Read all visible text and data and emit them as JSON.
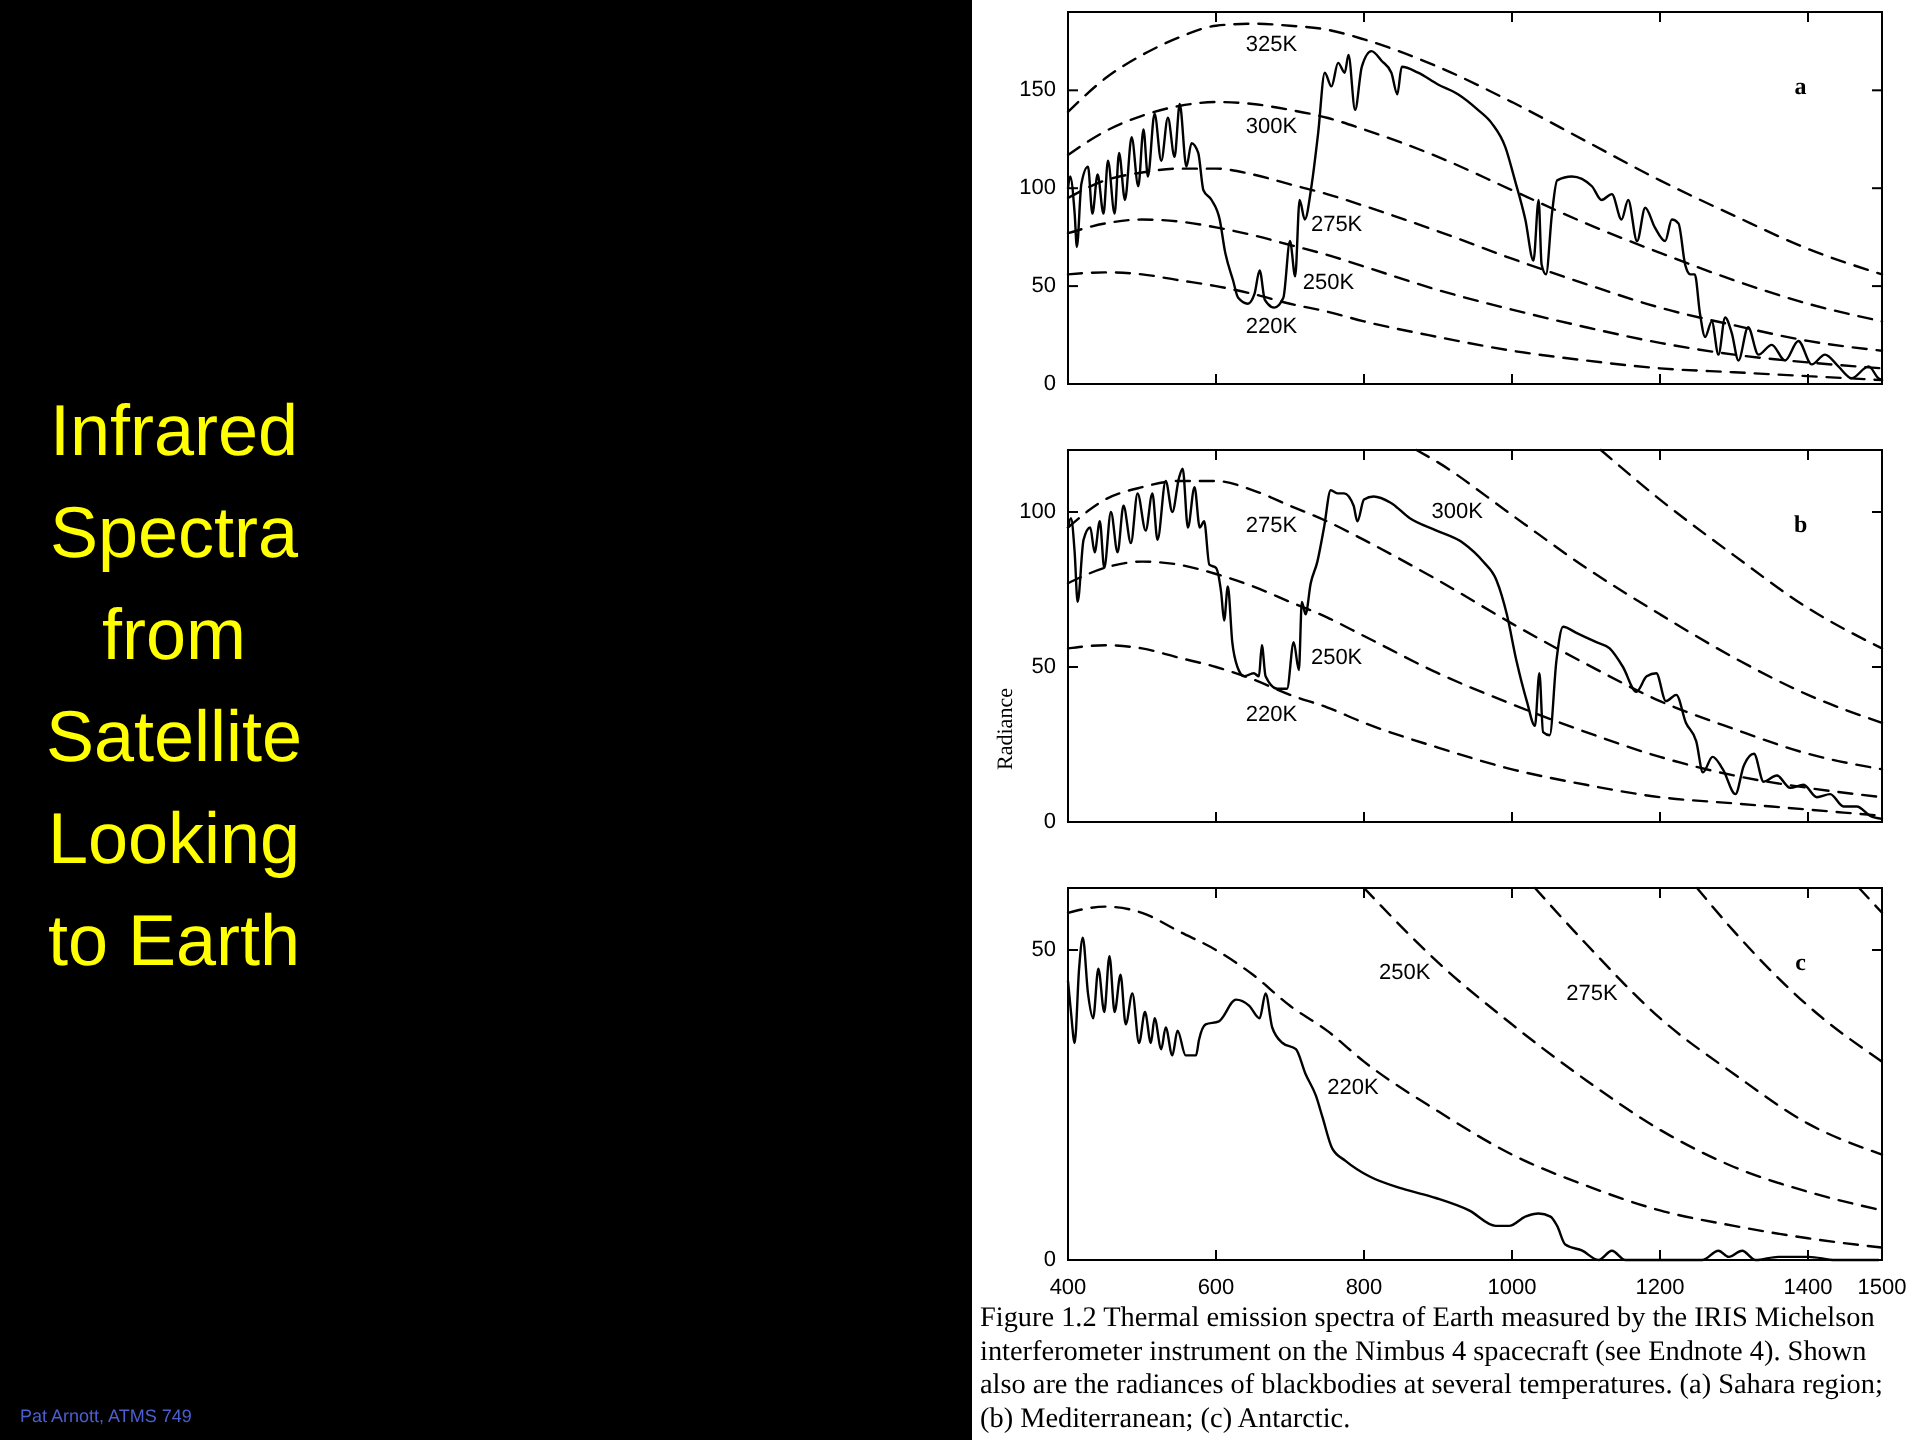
{
  "chart_data": [
    {
      "type": "other",
      "title": "Infrared Spectra from Satellite Looking to Earth",
      "annotations": [
        "Pat Arnott, ATMS 749"
      ]
    },
    {
      "type": "line",
      "title": "a",
      "xlim": [
        400,
        1500
      ],
      "xticks": [
        400,
        600,
        800,
        1000,
        1200,
        1400,
        1500
      ],
      "ylim": [
        0,
        190
      ],
      "yticks": [
        0,
        50,
        100,
        150
      ],
      "tick_labels": "y",
      "x": [
        400,
        450,
        500,
        550,
        600,
        650,
        700,
        750,
        800,
        900,
        1000,
        1100,
        1200,
        1300,
        1400,
        1500
      ],
      "series": [
        {
          "color": "#000000",
          "line_style": "solid",
          "x": [
            400,
            403,
            409,
            412,
            418,
            427,
            433,
            440,
            448,
            454,
            463,
            469,
            477,
            486,
            495,
            502,
            508,
            517,
            526,
            535,
            544,
            551,
            560,
            567,
            576,
            583,
            594,
            605,
            612,
            623,
            630,
            643,
            652,
            659,
            666,
            679,
            691,
            700,
            707,
            713,
            720,
            729,
            738,
            747,
            756,
            765,
            774,
            779,
            788,
            797,
            810,
            824,
            837,
            845,
            851,
            873,
            900,
            927,
            954,
            973,
            991,
            1004,
            1018,
            1029,
            1036,
            1040,
            1046,
            1054,
            1061,
            1081,
            1108,
            1121,
            1135,
            1148,
            1157,
            1169,
            1180,
            1193,
            1207,
            1216,
            1225,
            1234,
            1241,
            1247,
            1254,
            1261,
            1270,
            1279,
            1288,
            1297,
            1306,
            1319,
            1333,
            1351,
            1369,
            1387,
            1405,
            1423,
            1441,
            1459,
            1482,
            1495,
            1500
          ],
          "values": [
            100,
            106,
            87,
            70,
            102,
            111,
            87,
            107,
            87,
            114,
            87,
            118,
            94,
            126,
            101,
            130,
            106,
            138,
            114,
            136,
            116,
            143,
            111,
            123,
            118,
            99,
            94,
            84,
            68,
            53,
            44,
            41,
            46,
            58,
            43,
            39,
            44,
            73,
            55,
            94,
            84,
            101,
            128,
            159,
            152,
            164,
            159,
            168,
            140,
            162,
            170,
            165,
            159,
            148,
            162,
            159,
            153,
            148,
            140,
            133,
            121,
            104,
            84,
            63,
            94,
            61,
            56,
            87,
            104,
            106,
            101,
            94,
            97,
            84,
            94,
            73,
            90,
            80,
            73,
            84,
            82,
            61,
            56,
            56,
            36,
            24,
            32,
            15,
            34,
            26,
            12,
            29,
            15,
            20,
            12,
            22,
            10,
            15,
            9,
            3,
            9,
            3,
            2
          ]
        },
        {
          "name": "325K",
          "color": "#000000",
          "line_style": "dashed",
          "values": [
            139,
            156,
            168,
            177,
            183,
            184,
            183,
            181,
            176,
            162,
            144,
            124,
            104,
            86,
            69,
            56
          ]
        },
        {
          "name": "300K",
          "color": "#000000",
          "line_style": "dashed",
          "values": [
            117,
            129,
            137,
            142,
            144,
            143,
            140,
            136,
            130,
            116,
            99,
            82,
            67,
            53,
            41,
            32
          ]
        },
        {
          "name": "275K",
          "color": "#000000",
          "line_style": "dashed",
          "values": [
            95,
            104,
            108,
            110,
            110,
            107,
            102,
            97,
            91,
            78,
            64,
            51,
            39,
            30,
            22,
            17
          ]
        },
        {
          "name": "250K",
          "color": "#000000",
          "line_style": "dashed",
          "values": [
            77,
            82,
            84,
            83,
            80,
            76,
            71,
            66,
            60,
            48,
            38,
            29,
            21,
            15,
            11,
            8
          ]
        },
        {
          "name": "220K",
          "color": "#000000",
          "line_style": "dashed",
          "values": [
            56,
            57,
            56,
            53,
            50,
            46,
            41,
            37,
            32,
            24,
            17,
            12,
            8,
            6,
            4,
            2
          ]
        }
      ]
    },
    {
      "type": "line",
      "title": "b",
      "ylabel": "Radiance",
      "xlim": [
        400,
        1500
      ],
      "xticks": [
        400,
        600,
        800,
        1000,
        1200,
        1400,
        1500
      ],
      "ylim": [
        0,
        120
      ],
      "yticks": [
        0,
        50,
        100
      ],
      "tick_labels": "y",
      "x": [
        400,
        450,
        500,
        550,
        600,
        650,
        700,
        750,
        800,
        900,
        1000,
        1100,
        1200,
        1300,
        1400,
        1500
      ],
      "series": [
        {
          "color": "#000000",
          "line_style": "solid",
          "x": [
            400,
            404,
            409,
            413,
            421,
            430,
            436,
            443,
            449,
            458,
            467,
            475,
            485,
            494,
            505,
            514,
            521,
            532,
            541,
            550,
            555,
            562,
            571,
            578,
            584,
            591,
            600,
            607,
            611,
            616,
            622,
            629,
            638,
            651,
            658,
            662,
            667,
            683,
            696,
            705,
            712,
            716,
            721,
            728,
            737,
            746,
            755,
            764,
            773,
            786,
            791,
            800,
            813,
            836,
            862,
            898,
            934,
            961,
            979,
            993,
            1006,
            1020,
            1031,
            1037,
            1042,
            1051,
            1060,
            1069,
            1087,
            1114,
            1132,
            1150,
            1168,
            1182,
            1195,
            1208,
            1222,
            1235,
            1249,
            1258,
            1271,
            1285,
            1302,
            1313,
            1327,
            1340,
            1358,
            1376,
            1394,
            1412,
            1430,
            1448,
            1466,
            1484,
            1500
          ],
          "values": [
            95,
            98,
            87,
            71,
            91,
            95,
            87,
            97,
            82,
            100,
            87,
            102,
            90,
            106,
            94,
            106,
            91,
            110,
            100,
            111,
            114,
            95,
            108,
            95,
            97,
            83,
            82,
            74,
            65,
            76,
            58,
            50,
            47,
            48,
            47,
            57,
            47,
            43,
            43,
            58,
            49,
            71,
            67,
            77,
            84,
            95,
            107,
            106,
            106,
            102,
            97,
            104,
            105,
            103,
            98,
            94,
            90,
            84,
            78,
            67,
            52,
            39,
            31,
            48,
            29,
            28,
            52,
            63,
            61,
            58,
            56,
            50,
            42,
            47,
            48,
            39,
            41,
            32,
            26,
            16,
            21,
            17,
            9,
            18,
            22,
            13,
            15,
            11,
            12,
            8,
            9,
            5,
            5,
            2,
            1
          ]
        },
        {
          "color": "#000000",
          "line_style": "dashed",
          "x": [
            1120,
            1200,
            1300,
            1400,
            1500
          ],
          "values": [
            120,
            104,
            86,
            69,
            56
          ]
        },
        {
          "name": "300K",
          "color": "#000000",
          "line_style": "dashed",
          "x": [
            871,
            900,
            1000,
            1100,
            1200,
            1300,
            1400,
            1500
          ],
          "values": [
            120,
            116,
            99,
            82,
            67,
            53,
            41,
            32
          ]
        },
        {
          "name": "275K",
          "color": "#000000",
          "line_style": "dashed",
          "values": [
            95,
            104,
            108,
            110,
            110,
            107,
            102,
            97,
            91,
            78,
            64,
            51,
            39,
            30,
            22,
            17
          ]
        },
        {
          "name": "250K",
          "color": "#000000",
          "line_style": "dashed",
          "values": [
            77,
            82,
            84,
            83,
            80,
            76,
            71,
            66,
            60,
            48,
            38,
            29,
            21,
            15,
            11,
            8
          ]
        },
        {
          "name": "220K",
          "color": "#000000",
          "line_style": "dashed",
          "values": [
            56,
            57,
            56,
            53,
            50,
            46,
            41,
            37,
            32,
            24,
            17,
            12,
            8,
            6,
            4,
            2
          ]
        }
      ]
    },
    {
      "type": "line",
      "title": "c",
      "xlim": [
        400,
        1500
      ],
      "xticks": [
        400,
        600,
        800,
        1000,
        1200,
        1400,
        1500
      ],
      "ylim": [
        0,
        60
      ],
      "yticks": [
        0,
        50
      ],
      "x": [
        400,
        450,
        500,
        550,
        600,
        650,
        700,
        750,
        800,
        900,
        1000,
        1100,
        1200,
        1300,
        1400,
        1500
      ],
      "series": [
        {
          "color": "#000000",
          "line_style": "solid",
          "x": [
            400,
            404,
            409,
            415,
            420,
            427,
            434,
            441,
            449,
            456,
            463,
            471,
            478,
            487,
            496,
            504,
            512,
            517,
            526,
            532,
            541,
            548,
            559,
            573,
            577,
            586,
            604,
            627,
            645,
            659,
            667,
            676,
            690,
            708,
            721,
            735,
            744,
            757,
            775,
            807,
            852,
            897,
            942,
            978,
            996,
            1018,
            1036,
            1052,
            1061,
            1072,
            1095,
            1117,
            1135,
            1153,
            1203,
            1257,
            1279,
            1293,
            1311,
            1329,
            1360,
            1401,
            1437,
            1495
          ],
          "values": [
            45,
            40,
            35,
            47,
            52,
            43,
            39,
            47,
            40,
            49,
            40,
            46,
            38,
            43,
            35,
            40,
            35,
            39,
            34,
            37.5,
            33,
            37,
            33,
            33,
            35.5,
            38,
            38.5,
            42,
            41,
            39,
            43,
            37.5,
            35,
            34,
            30,
            26.5,
            23,
            18,
            16,
            13.5,
            11.5,
            10,
            8,
            5.5,
            5.5,
            7,
            7.5,
            7,
            5.5,
            2.5,
            1.5,
            0,
            1.5,
            0,
            0,
            0,
            1.5,
            0.5,
            1.5,
            0,
            0.5,
            0.5,
            0,
            0
          ]
        },
        {
          "color": "#000000",
          "line_style": "dashed",
          "x": [
            1469,
            1500
          ],
          "values": [
            60,
            56
          ]
        },
        {
          "color": "#000000",
          "line_style": "dashed",
          "x": [
            1250,
            1300,
            1400,
            1500
          ],
          "values": [
            60,
            53,
            41,
            32
          ]
        },
        {
          "name": "275K",
          "color": "#000000",
          "line_style": "dashed",
          "x": [
            1031,
            1100,
            1200,
            1300,
            1400,
            1500
          ],
          "values": [
            60,
            51,
            39,
            30,
            22,
            17
          ]
        },
        {
          "name": "250K",
          "color": "#000000",
          "line_style": "dashed",
          "x": [
            800,
            900,
            1000,
            1100,
            1200,
            1300,
            1400,
            1500
          ],
          "values": [
            60,
            48,
            38,
            29,
            21,
            15,
            11,
            8
          ]
        },
        {
          "name": "220K",
          "color": "#000000",
          "line_style": "dashed",
          "values": [
            56,
            57,
            56,
            53,
            50,
            46,
            41,
            37,
            32,
            24,
            17,
            12,
            8,
            5.5,
            3.5,
            2
          ]
        }
      ],
      "annotations": [
        "Figure 1.2 Thermal emission spectra of Earth measured by the IRIS Michelson interferometer instrument on the Nimbus 4 spacecraft (see Endnote 4). Shown also are the radiances of blackbodies at several temperatures. (a) Sahara region; (b) Mediterranean; (c) Antarctic."
      ]
    }
  ]
}
